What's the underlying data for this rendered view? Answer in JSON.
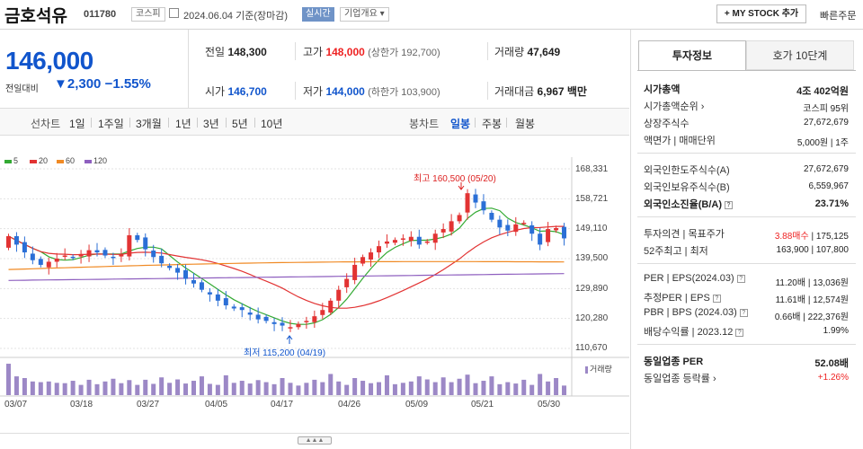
{
  "stock": {
    "name": "금호석유",
    "code": "011780",
    "market": "코스피",
    "date": "2024.06.04 기준(장마감)",
    "live": "실시간",
    "profile": "기업개요 ▾"
  },
  "actions": {
    "mystock": "+ MY STOCK 추가",
    "quick_order": "빠른주문"
  },
  "price": {
    "current": "146,000",
    "change_label": "전일대비",
    "change": "▼2,300",
    "change_pct": "−1.55%"
  },
  "summary": {
    "prev_label": "전일",
    "prev": "148,300",
    "high_label": "고가",
    "high": "148,000",
    "upper_limit": "(상한가 192,700)",
    "volume_label": "거래량",
    "volume": "47,649",
    "open_label": "시가",
    "open": "146,700",
    "low_label": "저가",
    "low": "144,000",
    "lower_limit": "(하한가 103,900)",
    "value_label": "거래대금",
    "value": "6,967",
    "value_unit": "백만"
  },
  "periods": {
    "line_chart": "선차트",
    "items": [
      "1일",
      "1주일",
      "3개월",
      "1년",
      "3년",
      "5년",
      "10년"
    ],
    "candle_chart": "봉차트",
    "candle_items": [
      "일봉",
      "주봉",
      "월봉"
    ],
    "candle_active": 0
  },
  "legend": [
    {
      "label": "5",
      "color": "#33aa33"
    },
    {
      "label": "20",
      "color": "#e23333"
    },
    {
      "label": "60",
      "color": "#f08a24"
    },
    {
      "label": "120",
      "color": "#8e5fbf"
    }
  ],
  "chart_data": {
    "type": "candlestick",
    "y_ticks": [
      "168,331",
      "158,721",
      "149,110",
      "139,500",
      "129,890",
      "120,280",
      "110,670"
    ],
    "ylim": [
      110670,
      168331
    ],
    "x_labels": [
      "03/07",
      "03/18",
      "03/27",
      "04/05",
      "04/17",
      "04/26",
      "05/09",
      "05/21",
      "05/30"
    ],
    "max_label": "최고 160,500 (05/20)",
    "min_label": "최저 115,200 (04/19)",
    "volume_label": "거래량",
    "closes": [
      146700,
      144000,
      141500,
      139000,
      137500,
      138500,
      139500,
      140500,
      139800,
      141000,
      142200,
      141500,
      140500,
      139800,
      141000,
      147000,
      145500,
      142500,
      140000,
      138000,
      136500,
      135000,
      133000,
      131500,
      129500,
      128000,
      126000,
      124500,
      123500,
      123000,
      121500,
      120000,
      119500,
      118500,
      118000,
      117500,
      118500,
      119500,
      121000,
      123000,
      126000,
      129500,
      133000,
      137500,
      140000,
      141500,
      143500,
      145000,
      145500,
      146000,
      146500,
      144000,
      145000,
      147500,
      149000,
      151500,
      153500,
      160500,
      157500,
      155000,
      152000,
      149500,
      148500,
      150500,
      151000,
      147500,
      144000,
      149000,
      149300,
      146000
    ],
    "volumes": [
      0.92,
      0.55,
      0.5,
      0.4,
      0.38,
      0.4,
      0.36,
      0.35,
      0.42,
      0.3,
      0.45,
      0.32,
      0.4,
      0.48,
      0.35,
      0.44,
      0.3,
      0.45,
      0.33,
      0.52,
      0.36,
      0.46,
      0.34,
      0.42,
      0.55,
      0.33,
      0.3,
      0.58,
      0.36,
      0.42,
      0.34,
      0.44,
      0.38,
      0.32,
      0.5,
      0.36,
      0.28,
      0.36,
      0.45,
      0.38,
      0.62,
      0.4,
      0.3,
      0.5,
      0.42,
      0.35,
      0.38,
      0.58,
      0.32,
      0.36,
      0.4,
      0.55,
      0.46,
      0.38,
      0.52,
      0.38,
      0.48,
      0.6,
      0.35,
      0.42,
      0.55,
      0.32,
      0.38,
      0.34,
      0.45,
      0.3,
      0.62,
      0.4,
      0.5,
      0.28
    ]
  },
  "tabs": [
    "투자정보",
    "호가 10단계"
  ],
  "info": [
    {
      "label": "시가총액",
      "value": "4조 402억원",
      "bold": true
    },
    {
      "label": "시가총액순위 ›",
      "value": "코스피 95위"
    },
    {
      "label": "상장주식수",
      "value": "27,672,679"
    },
    {
      "label": "액면가 | 매매단위",
      "value": "5,000원 | 1주"
    },
    {
      "label": "외국인한도주식수(A)",
      "value": "27,672,679"
    },
    {
      "label": "외국인보유주식수(B)",
      "value": "6,559,967"
    },
    {
      "label": "외국인소진율(B/A)",
      "value": "23.71%",
      "bold": true
    },
    {
      "label": "투자의견 | 목표주가",
      "value_red": "3.88매수",
      "value": " | 175,125"
    },
    {
      "label": "52주최고 | 최저",
      "value": "163,900 | 107,800"
    },
    {
      "label": "PER | EPS(2024.03)",
      "value": "11.20배 | 13,036원"
    },
    {
      "label": "추정PER | EPS",
      "value": "11.61배 | 12,574원"
    },
    {
      "label": "PBR | BPS (2024.03)",
      "value": "0.66배 | 222,376원"
    },
    {
      "label": "배당수익률 | 2023.12",
      "value": "1.99%"
    },
    {
      "label": "동일업종 PER",
      "value": "52.08배",
      "bold": true
    },
    {
      "label": "동일업종 등락률 ›",
      "value": "+1.26%",
      "red": true
    }
  ]
}
